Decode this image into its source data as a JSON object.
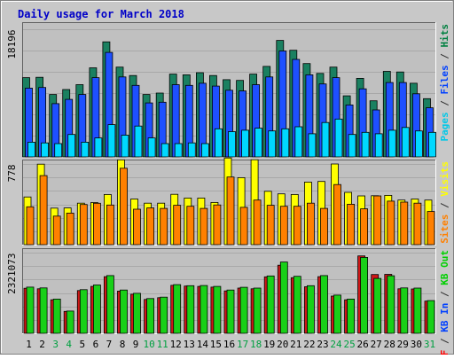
{
  "chart_data": {
    "type": "bar",
    "title": "Daily usage for March 2018",
    "categories": [
      "1",
      "2",
      "3",
      "4",
      "5",
      "6",
      "7",
      "8",
      "9",
      "10",
      "11",
      "12",
      "13",
      "14",
      "15",
      "16",
      "17",
      "18",
      "19",
      "20",
      "21",
      "22",
      "23",
      "24",
      "25",
      "26",
      "27",
      "28",
      "29",
      "30",
      "31"
    ],
    "weekend_days": [
      "3",
      "4",
      "10",
      "11",
      "17",
      "18",
      "24",
      "25",
      "31"
    ],
    "panels": [
      {
        "name": "hits-files-pages",
        "ytick": "18196",
        "ymax": 18196,
        "legend": [
          {
            "text": "Pages",
            "color": "#00c8e8"
          },
          {
            "text": " / ",
            "color": "#303030"
          },
          {
            "text": "Files",
            "color": "#0040ff"
          },
          {
            "text": " / ",
            "color": "#303030"
          },
          {
            "text": "Hits",
            "color": "#008040"
          }
        ],
        "series": [
          {
            "name": "Hits",
            "color": "#1a8060",
            "values": [
              11300,
              11350,
              8900,
              9600,
              10300,
              12700,
              16400,
              12800,
              11600,
              8900,
              9100,
              11800,
              11700,
              12000,
              11600,
              11000,
              10900,
              11800,
              12900,
              16600,
              15200,
              13300,
              11900,
              12800,
              8700,
              11200,
              8000,
              12200,
              12100,
              10500,
              8300
            ]
          },
          {
            "name": "Files",
            "color": "#1e50ff",
            "values": [
              9800,
              9900,
              7600,
              8200,
              8900,
              11300,
              14900,
              11400,
              10200,
              7700,
              7800,
              10300,
              10200,
              10500,
              10100,
              9500,
              9400,
              10300,
              11400,
              15100,
              13900,
              11700,
              10400,
              11300,
              7400,
              9700,
              6700,
              10600,
              10600,
              9000,
              7000
            ]
          },
          {
            "name": "Pages",
            "color": "#00d8ff",
            "values": [
              2100,
              2000,
              1900,
              3200,
              2100,
              2700,
              4600,
              3100,
              4400,
              2700,
              1900,
              1900,
              2000,
              1900,
              4000,
              3600,
              3800,
              4100,
              3700,
              4000,
              4300,
              3300,
              4900,
              5400,
              3200,
              3500,
              3300,
              3800,
              4200,
              3700,
              3500
            ]
          }
        ]
      },
      {
        "name": "visits-sites",
        "ytick": "778",
        "ymax": 778,
        "legend": [
          {
            "text": "Sites",
            "color": "#ff8000"
          },
          {
            "text": " / ",
            "color": "#303030"
          },
          {
            "text": "Visits",
            "color": "#ffff00"
          }
        ],
        "series": [
          {
            "name": "Visits",
            "color": "#ffff00",
            "values": [
              460,
              776,
              352,
              354,
              400,
              406,
              484,
              818,
              440,
              400,
              400,
              486,
              450,
              450,
              407,
              836,
              646,
              819,
              515,
              490,
              484,
              604,
              610,
              778,
              504,
              470,
              472,
              475,
              430,
              440,
              430
            ]
          },
          {
            "name": "Sites",
            "color": "#ff8000",
            "values": [
              365,
              666,
              275,
              304,
              387,
              399,
              382,
              737,
              342,
              355,
              350,
              380,
              370,
              350,
              383,
              652,
              360,
              430,
              380,
              370,
              370,
              400,
              350,
              580,
              390,
              345,
              470,
              420,
              410,
              400,
              320
            ]
          }
        ]
      },
      {
        "name": "kbytes",
        "ytick": "2321073",
        "ymax": 2321073,
        "legend": [
          {
            "text": "KB F",
            "color": "#ff0000"
          },
          {
            "text": " / ",
            "color": "#303030"
          },
          {
            "text": "KB In",
            "color": "#0040ff"
          },
          {
            "text": " / ",
            "color": "#303030"
          },
          {
            "text": "KB Out",
            "color": "#00d000"
          }
        ],
        "series": [
          {
            "name": "KB F",
            "color": "#d01818",
            "values": [
              1295000,
              1280000,
              965000,
              630000,
              1230000,
              1350000,
              1630000,
              1215000,
              1125000,
              975000,
              1025000,
              1380000,
              1360000,
              1350000,
              1330000,
              1220000,
              1300000,
              1280000,
              1625000,
              1960000,
              1600000,
              1340000,
              1630000,
              1070000,
              965000,
              2227000,
              1690000,
              1695000,
              1280000,
              1275000,
              925000
            ]
          },
          {
            "name": "KB Out",
            "color": "#18d018",
            "values": [
              1330000,
              1305000,
              985000,
              640000,
              1255000,
              1390000,
              1660000,
              1245000,
              1150000,
              1000000,
              1040000,
              1400000,
              1370000,
              1375000,
              1350000,
              1245000,
              1325000,
              1300000,
              1650000,
              2050000,
              1640000,
              1370000,
              1660000,
              1100000,
              985000,
              2183000,
              1580000,
              1655000,
              1305000,
              1300000,
              940000
            ]
          }
        ]
      }
    ]
  }
}
